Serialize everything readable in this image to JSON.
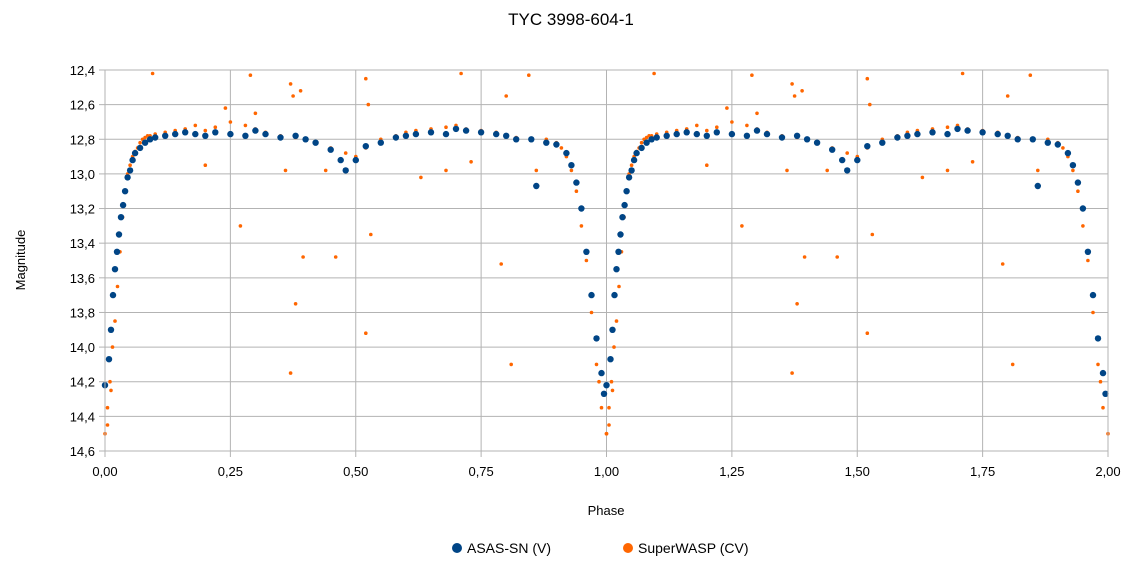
{
  "chart_data": {
    "type": "scatter",
    "title": "TYC 3998-604-1",
    "xlabel": "Phase",
    "ylabel": "Magnitude",
    "xlim": [
      0,
      2
    ],
    "ylim": [
      12.4,
      14.6
    ],
    "y_inverted": true,
    "grid": true,
    "legend_position": "bottom-center",
    "x_ticks": [
      "0,00",
      "0,25",
      "0,50",
      "0,75",
      "1,00",
      "1,25",
      "1,50",
      "1,75",
      "2,00"
    ],
    "y_ticks": [
      "12,4",
      "12,6",
      "12,8",
      "13,0",
      "13,2",
      "13,4",
      "13,6",
      "13,8",
      "14,0",
      "14,2",
      "14,4",
      "14,6"
    ],
    "series": [
      {
        "name": "SuperWASP (CV)",
        "color": "#ff6600",
        "marker": "small-dot",
        "x": [
          0.0,
          0.005,
          0.01,
          0.015,
          0.02,
          0.025,
          0.03,
          0.035,
          0.04,
          0.045,
          0.05,
          0.055,
          0.06,
          0.065,
          0.07,
          0.075,
          0.08,
          0.085,
          0.09,
          0.1,
          0.12,
          0.14,
          0.16,
          0.18,
          0.2,
          0.22,
          0.25,
          0.28,
          0.3,
          0.32,
          0.35,
          0.38,
          0.4,
          0.42,
          0.45,
          0.48,
          0.5,
          0.52,
          0.55,
          0.58,
          0.6,
          0.62,
          0.65,
          0.68,
          0.7,
          0.72,
          0.75,
          0.78,
          0.8,
          0.82,
          0.85,
          0.88,
          0.9,
          0.91,
          0.92,
          0.93,
          0.94,
          0.95,
          0.96,
          0.97,
          0.98,
          0.99,
          1.0,
          0.095,
          0.29,
          0.37,
          0.375,
          0.39,
          0.52,
          0.525,
          0.71,
          0.8,
          0.845,
          0.38,
          0.52,
          0.37,
          0.81,
          0.24,
          0.3,
          0.36,
          0.395,
          0.53,
          0.68,
          0.79,
          0.27,
          0.44,
          0.63,
          0.86,
          0.2,
          0.46,
          0.73,
          0.005,
          0.012,
          0.985
        ],
        "y": [
          14.5,
          14.35,
          14.2,
          14.0,
          13.85,
          13.65,
          13.45,
          13.25,
          13.1,
          13.0,
          12.95,
          12.9,
          12.87,
          12.85,
          12.82,
          12.8,
          12.79,
          12.78,
          12.78,
          12.77,
          12.76,
          12.75,
          12.74,
          12.72,
          12.75,
          12.73,
          12.7,
          12.72,
          12.74,
          12.76,
          12.78,
          12.79,
          12.8,
          12.82,
          12.85,
          12.88,
          12.9,
          12.85,
          12.8,
          12.78,
          12.76,
          12.75,
          12.74,
          12.73,
          12.72,
          12.74,
          12.75,
          12.76,
          12.78,
          12.79,
          12.8,
          12.8,
          12.82,
          12.85,
          12.9,
          12.98,
          13.1,
          13.3,
          13.5,
          13.8,
          14.1,
          14.35,
          14.5,
          12.42,
          12.43,
          12.48,
          12.55,
          12.52,
          12.45,
          12.6,
          12.42,
          12.55,
          12.43,
          13.75,
          13.92,
          14.15,
          14.1,
          12.62,
          12.65,
          12.98,
          13.48,
          13.35,
          12.98,
          13.52,
          13.3,
          12.98,
          13.02,
          12.98,
          12.95,
          13.48,
          12.93,
          14.45,
          14.25,
          14.2
        ]
      },
      {
        "name": "ASAS-SN (V)",
        "color": "#004586",
        "marker": "dot",
        "x": [
          0.0,
          0.008,
          0.012,
          0.016,
          0.02,
          0.024,
          0.028,
          0.032,
          0.036,
          0.04,
          0.045,
          0.05,
          0.055,
          0.06,
          0.07,
          0.08,
          0.09,
          0.1,
          0.12,
          0.14,
          0.16,
          0.18,
          0.2,
          0.22,
          0.25,
          0.28,
          0.3,
          0.32,
          0.35,
          0.38,
          0.4,
          0.42,
          0.45,
          0.47,
          0.48,
          0.5,
          0.52,
          0.55,
          0.58,
          0.6,
          0.62,
          0.65,
          0.68,
          0.7,
          0.72,
          0.75,
          0.78,
          0.8,
          0.82,
          0.85,
          0.86,
          0.88,
          0.9,
          0.92,
          0.93,
          0.94,
          0.95,
          0.96,
          0.97,
          0.98,
          0.99,
          0.995
        ],
        "y": [
          14.22,
          14.07,
          13.9,
          13.7,
          13.55,
          13.45,
          13.35,
          13.25,
          13.18,
          13.1,
          13.02,
          12.98,
          12.92,
          12.88,
          12.85,
          12.82,
          12.8,
          12.79,
          12.78,
          12.77,
          12.76,
          12.77,
          12.78,
          12.76,
          12.77,
          12.78,
          12.75,
          12.77,
          12.79,
          12.78,
          12.8,
          12.82,
          12.86,
          12.92,
          12.98,
          12.92,
          12.84,
          12.82,
          12.79,
          12.78,
          12.77,
          12.76,
          12.77,
          12.74,
          12.75,
          12.76,
          12.77,
          12.78,
          12.8,
          12.8,
          13.07,
          12.82,
          12.83,
          12.88,
          12.95,
          13.05,
          13.2,
          13.45,
          13.7,
          13.95,
          14.15,
          14.27
        ]
      }
    ]
  }
}
